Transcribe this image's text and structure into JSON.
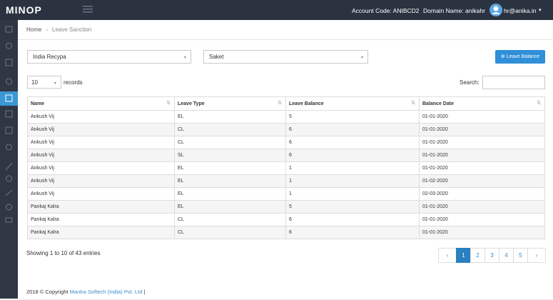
{
  "header": {
    "logo": "MINOP",
    "account_code": "Account Code: ANIBCD2",
    "domain_name": "Domain Name: anikahr",
    "user_email": "hr@anika.in"
  },
  "breadcrumb": [
    "Home",
    "Leave Sanction"
  ],
  "filters": [
    "India Recypa",
    "Saket"
  ],
  "button": "Leave Balance",
  "page_length": "10",
  "records_label": "records",
  "search_label": "Search:",
  "table": {
    "columns": [
      "Name",
      "Leave Type",
      "Leave Balance",
      "Balance Date"
    ],
    "rows": [
      [
        "Ankush Vij",
        "EL",
        "5",
        "01-01-2020"
      ],
      [
        "Ankush Vij",
        "CL",
        "6",
        "01-01-2020"
      ],
      [
        "Ankush Vij",
        "CL",
        "6",
        "01-01-2020"
      ],
      [
        "Ankush Vij",
        "SL",
        "6",
        "01-01-2020"
      ],
      [
        "Ankush Vij",
        "EL",
        "1",
        "01-01-2020"
      ],
      [
        "Ankush Vij",
        "EL",
        "1",
        "01-02-2020"
      ],
      [
        "Ankush Vij",
        "EL",
        "1",
        "02-03-2020"
      ],
      [
        "Pankaj Kalra",
        "EL",
        "5",
        "01-01-2020"
      ],
      [
        "Pankaj Kalra",
        "CL",
        "6",
        "01-01-2020"
      ],
      [
        "Pankaj Kalra",
        "CL",
        "6",
        "01-01-2020"
      ]
    ]
  },
  "info": "Showing 1 to 10 of 43 entries",
  "pagination": [
    "‹",
    "1",
    "2",
    "3",
    "4",
    "5",
    "›"
  ],
  "footer": {
    "copyright": "2018 © Copyright",
    "company": "Mantra Softech (India) Pvt. Ltd",
    "separator": "|"
  }
}
